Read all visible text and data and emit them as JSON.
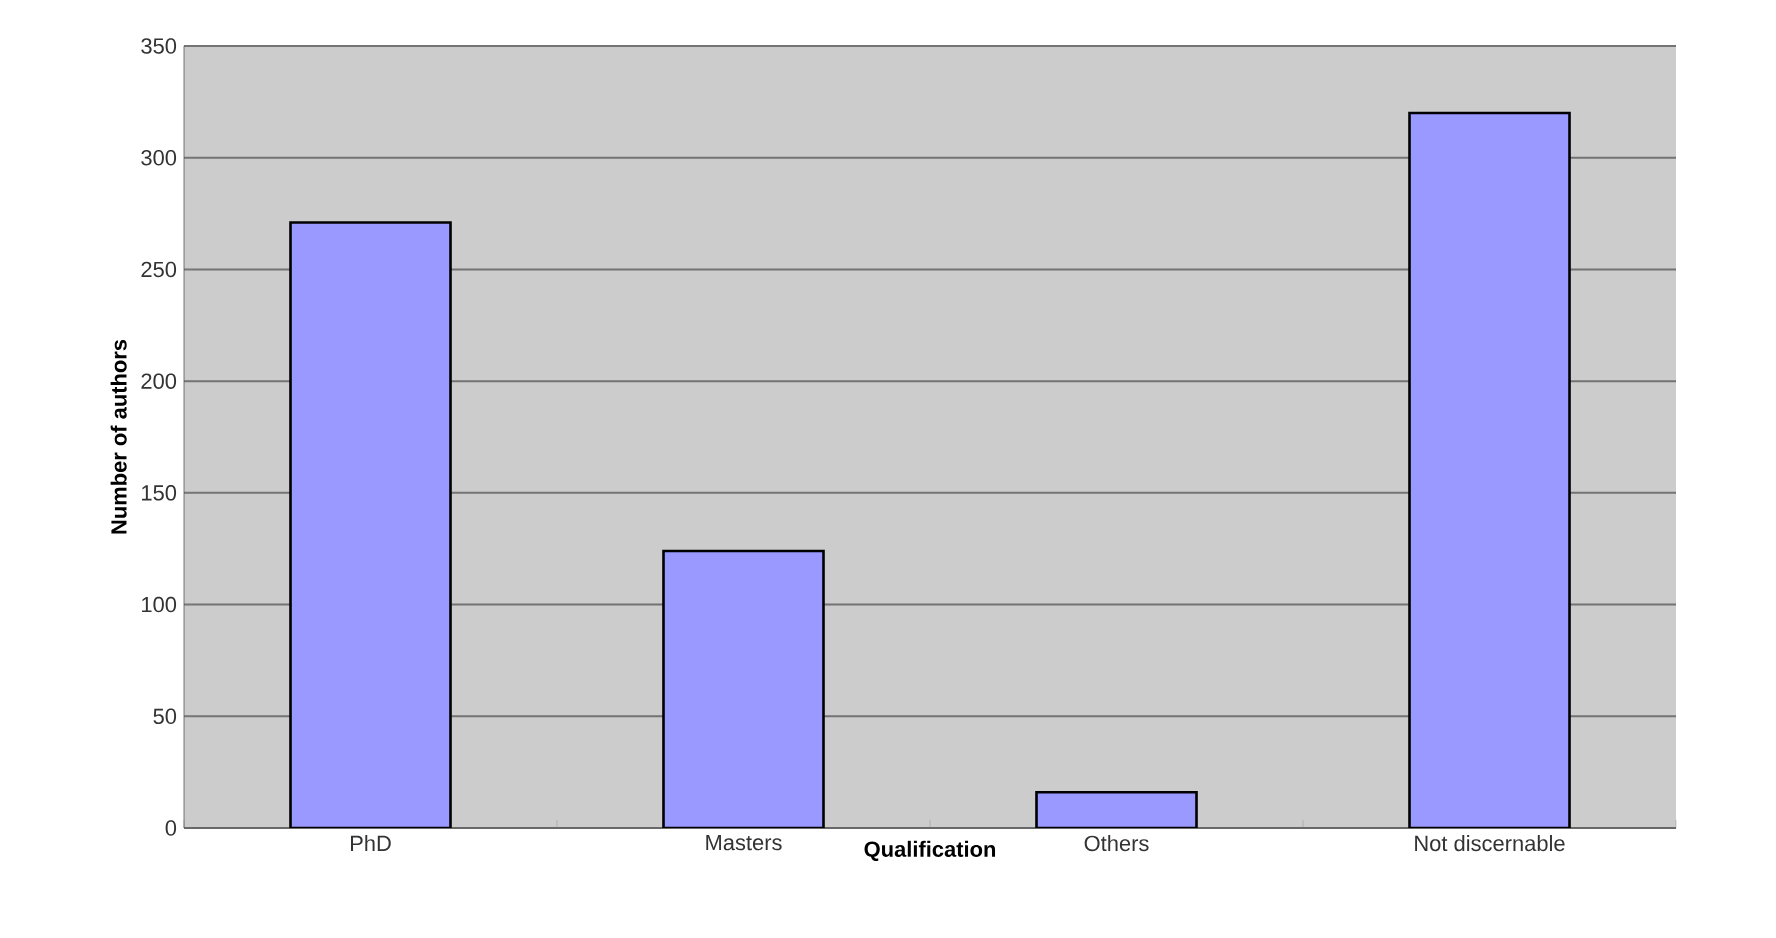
{
  "chart_data": {
    "type": "bar",
    "xlabel": "Qualification",
    "ylabel": "Number of authors",
    "categories": [
      "PhD",
      "Masters",
      "Others",
      "Not discernable"
    ],
    "values": [
      271,
      124,
      16,
      320
    ],
    "color": "#9999ff",
    "ylim": [
      0,
      350
    ],
    "yticks": [
      0,
      50,
      100,
      150,
      200,
      250,
      300,
      350
    ],
    "grid": "y"
  }
}
